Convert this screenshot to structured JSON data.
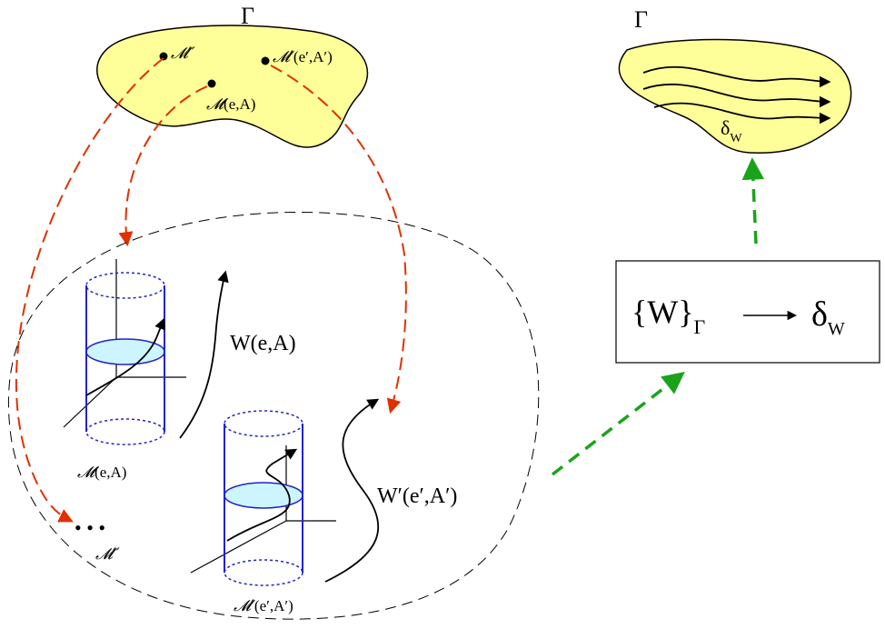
{
  "colors": {
    "region_fill": "#ffff99",
    "region_stroke": "#000000",
    "mapping_arrow": "#e03000",
    "flow_arrow": "#1aa31a",
    "cylinder": "#2222cc",
    "slice_fill": "#ccf5ff",
    "ink": "#000000"
  },
  "left_region": {
    "label": "Γ",
    "points": {
      "m2": "𝓜′′",
      "m1_sym": "𝓜",
      "m1_args": "(e,A)",
      "m3_sym": "𝓜′",
      "m3_args": "(e′,A′)"
    }
  },
  "right_region": {
    "label": "Γ",
    "flow_symbol": "δ",
    "flow_subscript": "W"
  },
  "ensemble": {
    "worldline1": "W(e,A)",
    "worldline2": "W′(e′,A′)",
    "cyl1_sym": "𝓜",
    "cyl1_args": "(e,A)",
    "cyl2_sym": "𝓜′",
    "cyl2_args": "(e′,A′)",
    "ellipsis": "• • •",
    "others": "𝓜′′"
  },
  "box": {
    "set_open": "{W}",
    "set_subscript": "Γ",
    "delta": "δ",
    "delta_subscript": "W"
  }
}
